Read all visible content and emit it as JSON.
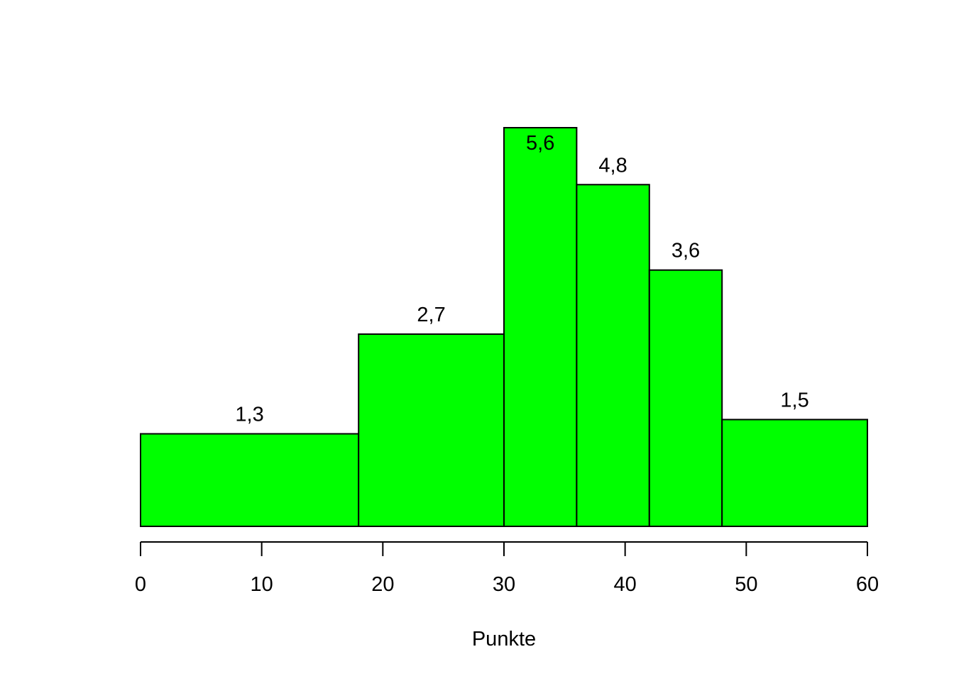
{
  "chart_data": {
    "type": "bar",
    "subtype": "histogram",
    "title": "",
    "xlabel": "Punkte",
    "ylabel": "",
    "xlim": [
      0,
      60
    ],
    "ylim": [
      0,
      5.6
    ],
    "grid": false,
    "legend": "none",
    "bar_color": "#00ff00",
    "bins": [
      {
        "x0": 0,
        "x1": 18,
        "value": 1.3,
        "label": "1,3"
      },
      {
        "x0": 18,
        "x1": 30,
        "value": 2.7,
        "label": "2,7"
      },
      {
        "x0": 30,
        "x1": 36,
        "value": 5.6,
        "label": "5,6"
      },
      {
        "x0": 36,
        "x1": 42,
        "value": 4.8,
        "label": "4,8"
      },
      {
        "x0": 42,
        "x1": 48,
        "value": 3.6,
        "label": "3,6"
      },
      {
        "x0": 48,
        "x1": 60,
        "value": 1.5,
        "label": "1,5"
      }
    ],
    "x_ticks": [
      0,
      10,
      20,
      30,
      40,
      50,
      60
    ],
    "x_tick_labels": [
      "0",
      "10",
      "20",
      "30",
      "40",
      "50",
      "60"
    ]
  }
}
